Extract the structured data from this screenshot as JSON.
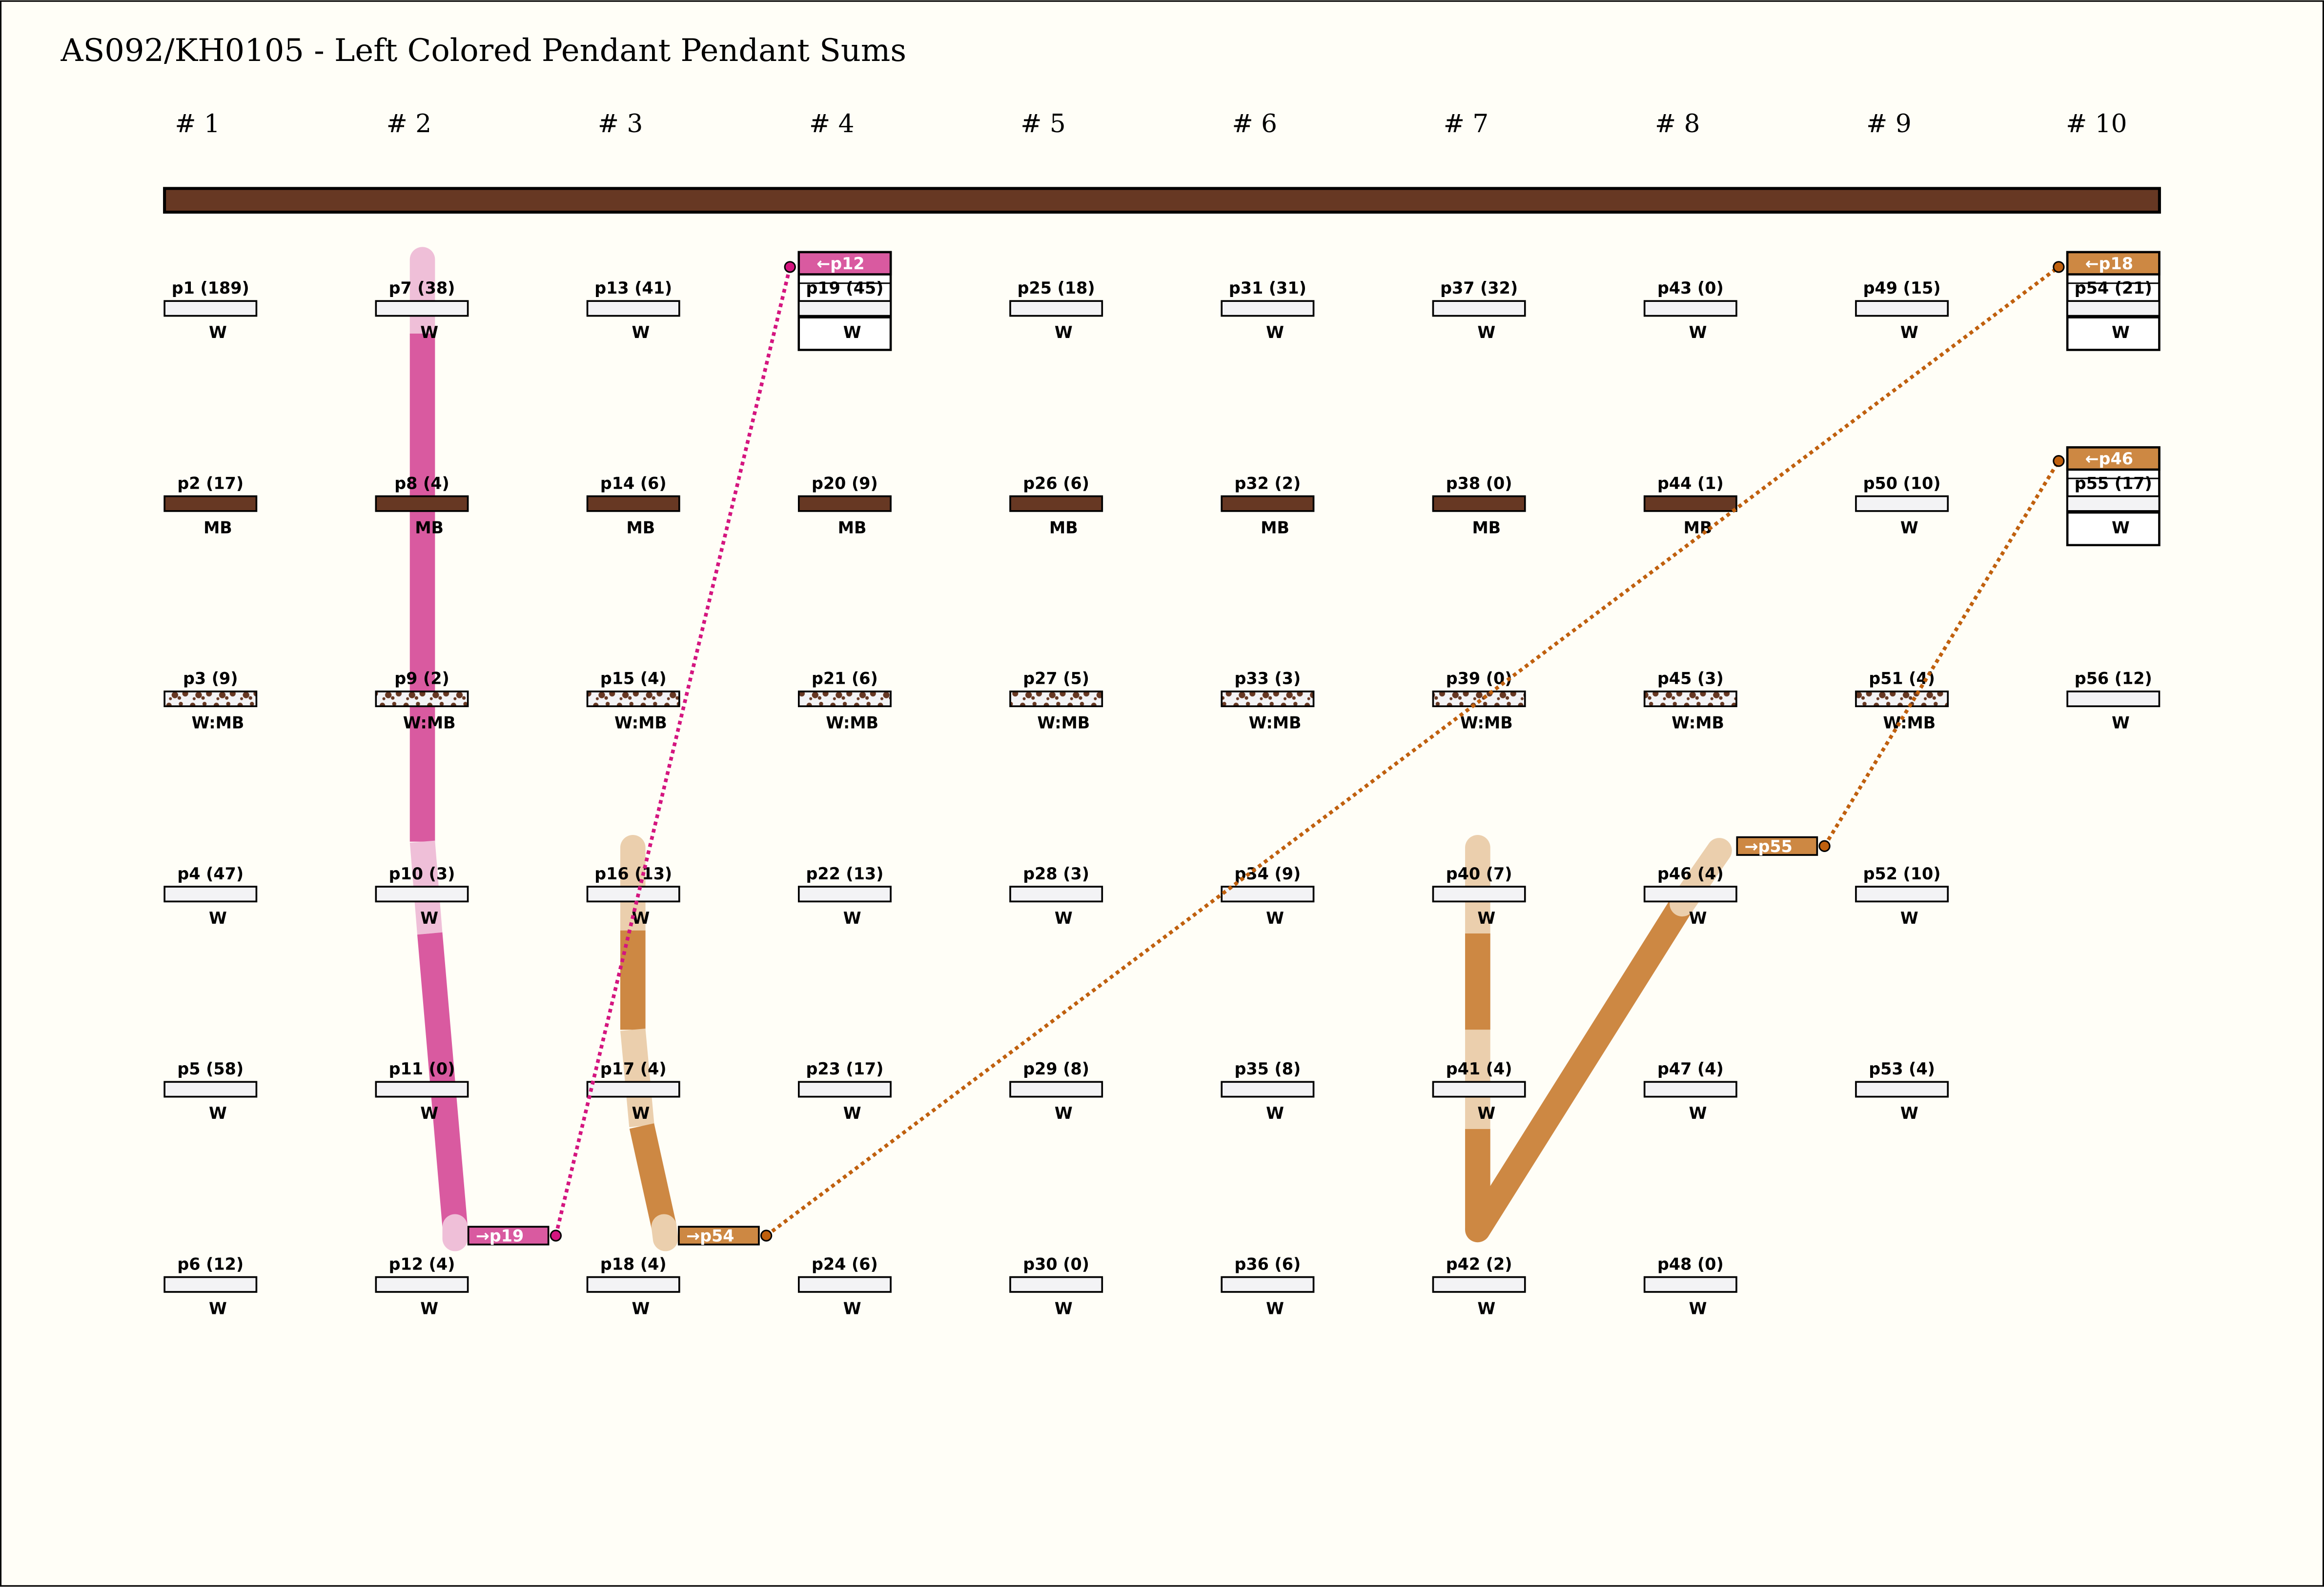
{
  "title": "AS092/KH0105 - Left Colored Pendant Pendant Sums",
  "colors": {
    "W": "#f3f3f5",
    "MB": "#673823",
    "pink": "#d95aa0",
    "pink_light": "#efbfd8",
    "pink_dot": "#d4157f",
    "orange": "#cd8843",
    "orange_light": "#ebcfad",
    "orange_dot": "#c0600e",
    "background": "#fffef7"
  },
  "groups": [
    "# 1",
    "# 2",
    "# 3",
    "# 4",
    "# 5",
    "# 6",
    "# 7",
    "# 8",
    "# 9",
    "# 10"
  ],
  "columns": [
    [
      {
        "id": "p1",
        "v": "189",
        "c": "W"
      },
      {
        "id": "p2",
        "v": "17",
        "c": "MB"
      },
      {
        "id": "p3",
        "v": "9",
        "c": "W:MB"
      },
      {
        "id": "p4",
        "v": "47",
        "c": "W"
      },
      {
        "id": "p5",
        "v": "58",
        "c": "W"
      },
      {
        "id": "p6",
        "v": "12",
        "c": "W"
      }
    ],
    [
      {
        "id": "p7",
        "v": "38",
        "c": "W"
      },
      {
        "id": "p8",
        "v": "4",
        "c": "MB"
      },
      {
        "id": "p9",
        "v": "2",
        "c": "W:MB"
      },
      {
        "id": "p10",
        "v": "3",
        "c": "W"
      },
      {
        "id": "p11",
        "v": "0",
        "c": "W"
      },
      {
        "id": "p12",
        "v": "4",
        "c": "W"
      }
    ],
    [
      {
        "id": "p13",
        "v": "41",
        "c": "W"
      },
      {
        "id": "p14",
        "v": "6",
        "c": "MB"
      },
      {
        "id": "p15",
        "v": "4",
        "c": "W:MB"
      },
      {
        "id": "p16",
        "v": "13",
        "c": "W"
      },
      {
        "id": "p17",
        "v": "4",
        "c": "W"
      },
      {
        "id": "p18",
        "v": "4",
        "c": "W"
      }
    ],
    [
      {
        "id": "p19",
        "v": "45",
        "c": "W",
        "sum_of": "←p12",
        "sum_color": "pink"
      },
      {
        "id": "p20",
        "v": "9",
        "c": "MB"
      },
      {
        "id": "p21",
        "v": "6",
        "c": "W:MB"
      },
      {
        "id": "p22",
        "v": "13",
        "c": "W"
      },
      {
        "id": "p23",
        "v": "17",
        "c": "W"
      },
      {
        "id": "p24",
        "v": "6",
        "c": "W"
      }
    ],
    [
      {
        "id": "p25",
        "v": "18",
        "c": "W"
      },
      {
        "id": "p26",
        "v": "6",
        "c": "MB"
      },
      {
        "id": "p27",
        "v": "5",
        "c": "W:MB"
      },
      {
        "id": "p28",
        "v": "3",
        "c": "W"
      },
      {
        "id": "p29",
        "v": "8",
        "c": "W"
      },
      {
        "id": "p30",
        "v": "0",
        "c": "W"
      }
    ],
    [
      {
        "id": "p31",
        "v": "31",
        "c": "W"
      },
      {
        "id": "p32",
        "v": "2",
        "c": "MB"
      },
      {
        "id": "p33",
        "v": "3",
        "c": "W:MB"
      },
      {
        "id": "p34",
        "v": "9",
        "c": "W"
      },
      {
        "id": "p35",
        "v": "8",
        "c": "W"
      },
      {
        "id": "p36",
        "v": "6",
        "c": "W"
      }
    ],
    [
      {
        "id": "p37",
        "v": "32",
        "c": "W"
      },
      {
        "id": "p38",
        "v": "0",
        "c": "MB"
      },
      {
        "id": "p39",
        "v": "0",
        "c": "W:MB"
      },
      {
        "id": "p40",
        "v": "7",
        "c": "W"
      },
      {
        "id": "p41",
        "v": "4",
        "c": "W"
      },
      {
        "id": "p42",
        "v": "2",
        "c": "W"
      }
    ],
    [
      {
        "id": "p43",
        "v": "0",
        "c": "W"
      },
      {
        "id": "p44",
        "v": "1",
        "c": "MB"
      },
      {
        "id": "p45",
        "v": "3",
        "c": "W:MB"
      },
      {
        "id": "p46",
        "v": "4",
        "c": "W"
      },
      {
        "id": "p47",
        "v": "4",
        "c": "W"
      },
      {
        "id": "p48",
        "v": "0",
        "c": "W"
      }
    ],
    [
      {
        "id": "p49",
        "v": "15",
        "c": "W"
      },
      {
        "id": "p50",
        "v": "10",
        "c": "W"
      },
      {
        "id": "p51",
        "v": "4",
        "c": "W:MB"
      },
      {
        "id": "p52",
        "v": "10",
        "c": "W"
      },
      {
        "id": "p53",
        "v": "4",
        "c": "W"
      }
    ],
    [
      {
        "id": "p54",
        "v": "21",
        "c": "W",
        "sum_of": "←p18",
        "sum_color": "orange"
      },
      {
        "id": "p55",
        "v": "17",
        "c": "W",
        "sum_of": "←p46",
        "sum_color": "orange"
      },
      {
        "id": "p56",
        "v": "12",
        "c": "W"
      }
    ]
  ],
  "sum_tags": [
    {
      "text": "→p19",
      "color": "pink"
    },
    {
      "text": "→p54",
      "color": "orange"
    },
    {
      "text": "→p55",
      "color": "orange"
    }
  ]
}
